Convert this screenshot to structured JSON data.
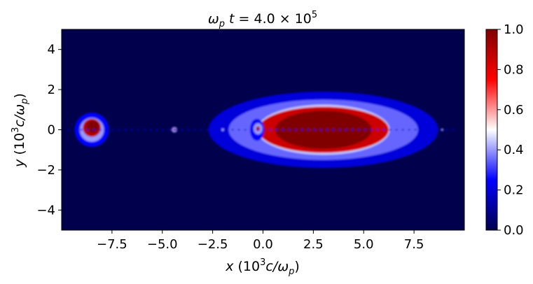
{
  "chart_data": {
    "type": "heatmap",
    "title": {
      "prefix": "ω",
      "sub": "p",
      "rest": "t = 4.0 × 10",
      "sup": "5"
    },
    "xlabel": {
      "var": "x",
      "open": " (10",
      "sup": "3",
      "mid": "c/ω",
      "sub": "p",
      "close": ")"
    },
    "ylabel": {
      "var": "y",
      "open": " (10",
      "sup": "3",
      "mid": "c/ω",
      "sub": "p",
      "close": ")"
    },
    "xlim": [
      -10,
      10
    ],
    "ylim": [
      -5,
      5
    ],
    "x_ticks": [
      {
        "value": -7.5,
        "label": "−7.5"
      },
      {
        "value": -5.0,
        "label": "−5.0"
      },
      {
        "value": -2.5,
        "label": "−2.5"
      },
      {
        "value": 0.0,
        "label": "0.0"
      },
      {
        "value": 2.5,
        "label": "2.5"
      },
      {
        "value": 5.0,
        "label": "5.0"
      },
      {
        "value": 7.5,
        "label": "7.5"
      }
    ],
    "y_ticks": [
      {
        "value": 4,
        "label": "4"
      },
      {
        "value": 2,
        "label": "2"
      },
      {
        "value": 0,
        "label": "0"
      },
      {
        "value": -2,
        "label": "−2"
      },
      {
        "value": -4,
        "label": "−4"
      }
    ],
    "colorbar": {
      "colormap": "seismic",
      "range": [
        0.0,
        1.0
      ],
      "ticks": [
        {
          "value": 1.0,
          "label": "1.0"
        },
        {
          "value": 0.8,
          "label": "0.8"
        },
        {
          "value": 0.6,
          "label": "0.6"
        },
        {
          "value": 0.4,
          "label": "0.4"
        },
        {
          "value": 0.2,
          "label": "0.2"
        },
        {
          "value": 0.0,
          "label": "0.0"
        }
      ],
      "stops": [
        "#00004c",
        "#0000ff",
        "#ffffff",
        "#ff0000",
        "#800000"
      ]
    },
    "background_value": 0.0,
    "features": [
      {
        "kind": "blob",
        "x": 3.0,
        "y": 0.0,
        "rx": 5.7,
        "ry": 1.9,
        "level": 0.2
      },
      {
        "kind": "blob",
        "x": 3.0,
        "y": 0.0,
        "rx": 4.7,
        "ry": 1.5,
        "level": 0.35
      },
      {
        "kind": "blob",
        "x": 3.0,
        "y": 0.0,
        "rx": 3.3,
        "ry": 1.25,
        "level": 0.45
      },
      {
        "kind": "blob",
        "x": 3.0,
        "y": 0.0,
        "rx": 3.25,
        "ry": 1.15,
        "level": 0.85
      },
      {
        "kind": "blob",
        "x": 3.0,
        "y": 0.0,
        "rx": 2.4,
        "ry": 0.95,
        "level": 1.0
      },
      {
        "kind": "blob",
        "x": -8.5,
        "y": 0.0,
        "rx": 0.85,
        "ry": 0.85,
        "level": 0.25
      },
      {
        "kind": "blob",
        "x": -8.5,
        "y": 0.0,
        "rx": 0.6,
        "ry": 0.6,
        "level": 0.4
      },
      {
        "kind": "blob",
        "x": -8.5,
        "y": 0.1,
        "rx": 0.45,
        "ry": 0.45,
        "level": 0.9
      },
      {
        "kind": "blob",
        "x": -8.45,
        "y": 0.15,
        "rx": 0.3,
        "ry": 0.3,
        "level": 1.0
      },
      {
        "kind": "blob",
        "x": -0.3,
        "y": 0.0,
        "rx": 0.35,
        "ry": 0.55,
        "level": 0.25
      },
      {
        "kind": "blob",
        "x": -0.25,
        "y": 0.05,
        "rx": 0.22,
        "ry": 0.28,
        "level": 0.4
      },
      {
        "kind": "blob",
        "x": -0.25,
        "y": 0.05,
        "rx": 0.1,
        "ry": 0.12,
        "level": 0.9
      },
      {
        "kind": "blob",
        "x": -4.4,
        "y": 0.0,
        "rx": 0.14,
        "ry": 0.14,
        "level": 0.4
      },
      {
        "kind": "blob",
        "x": -4.4,
        "y": 0.0,
        "rx": 0.06,
        "ry": 0.06,
        "level": 0.95
      },
      {
        "kind": "blob",
        "x": -2.0,
        "y": 0.0,
        "rx": 0.06,
        "ry": 0.06,
        "level": 0.4
      },
      {
        "kind": "blob",
        "x": 8.9,
        "y": 0.0,
        "rx": 0.06,
        "ry": 0.06,
        "level": 0.4
      },
      {
        "kind": "filament",
        "x0": -9.7,
        "x1": 9.7,
        "y": 0.0,
        "level": 0.18
      }
    ]
  }
}
